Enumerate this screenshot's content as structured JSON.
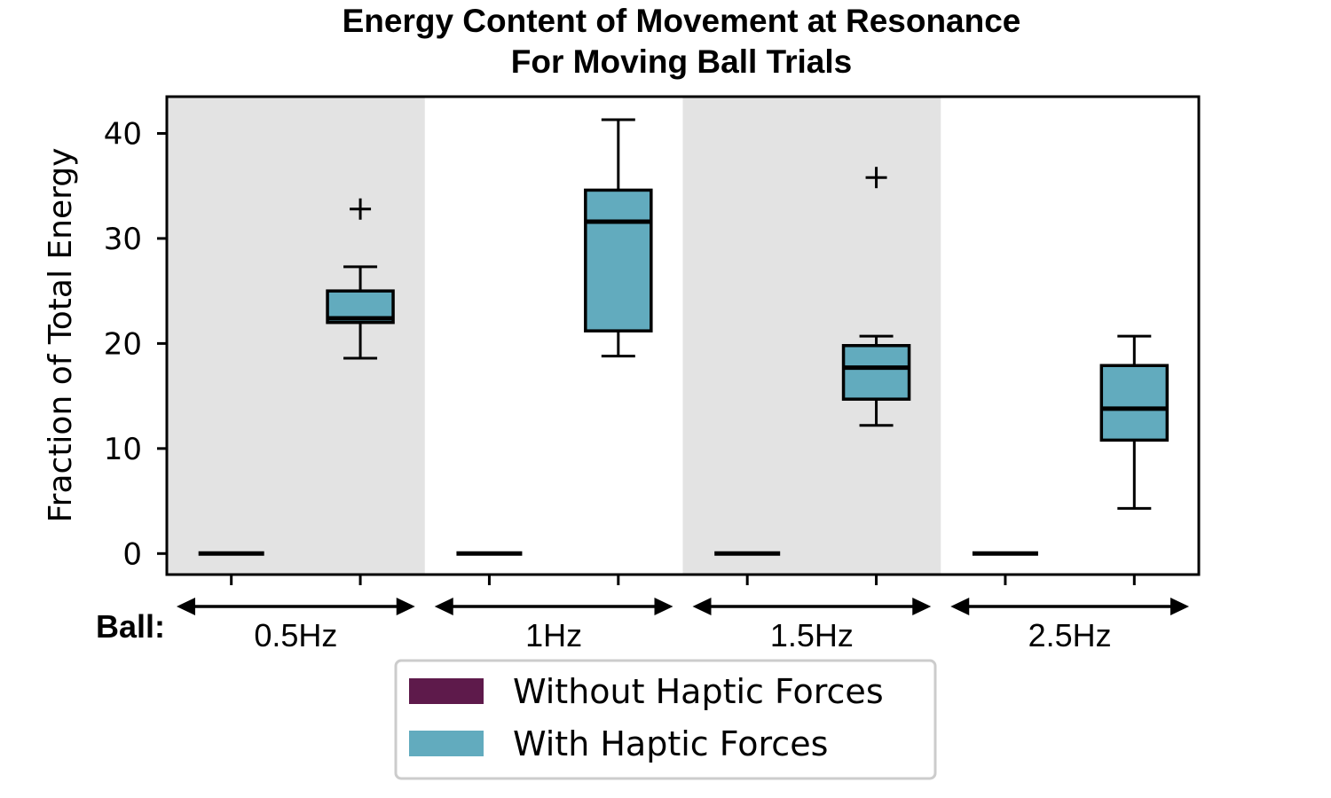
{
  "chart_data": {
    "type": "box",
    "title": "Energy Content of Movement at Resonance",
    "subtitle": "For Moving Ball Trials",
    "ylabel": "Fraction of Total Energy",
    "xlabel": "",
    "ylim": [
      -2,
      43.5
    ],
    "yticks": [
      0,
      10,
      20,
      30,
      40
    ],
    "group_prefix": "Ball:",
    "groups": [
      "0.5Hz",
      "1Hz",
      "1.5Hz",
      "2.5Hz"
    ],
    "shaded_groups": [
      true,
      false,
      true,
      false
    ],
    "series": [
      {
        "name": "Without Haptic Forces",
        "color": "#5e1a4b",
        "boxes": [
          {
            "whislo": 0,
            "q1": 0,
            "med": 0,
            "q3": 0,
            "whishi": 0,
            "fliers": []
          },
          {
            "whislo": 0,
            "q1": 0,
            "med": 0,
            "q3": 0,
            "whishi": 0,
            "fliers": []
          },
          {
            "whislo": 0,
            "q1": 0,
            "med": 0,
            "q3": 0,
            "whishi": 0,
            "fliers": []
          },
          {
            "whislo": 0,
            "q1": 0,
            "med": 0,
            "q3": 0,
            "whishi": 0,
            "fliers": []
          }
        ]
      },
      {
        "name": "With Haptic Forces",
        "color": "#62abbe",
        "boxes": [
          {
            "whislo": 18.6,
            "q1": 22.0,
            "med": 22.4,
            "q3": 25.0,
            "whishi": 27.3,
            "fliers": [
              32.8
            ]
          },
          {
            "whislo": 18.8,
            "q1": 21.2,
            "med": 31.6,
            "q3": 34.6,
            "whishi": 41.3,
            "fliers": []
          },
          {
            "whislo": 12.2,
            "q1": 14.7,
            "med": 17.7,
            "q3": 19.8,
            "whishi": 20.7,
            "fliers": [
              35.8
            ]
          },
          {
            "whislo": 4.3,
            "q1": 10.8,
            "med": 13.8,
            "q3": 17.9,
            "whishi": 20.7,
            "fliers": []
          }
        ]
      }
    ],
    "legend": {
      "position": "bottom-center"
    },
    "grid": false
  }
}
